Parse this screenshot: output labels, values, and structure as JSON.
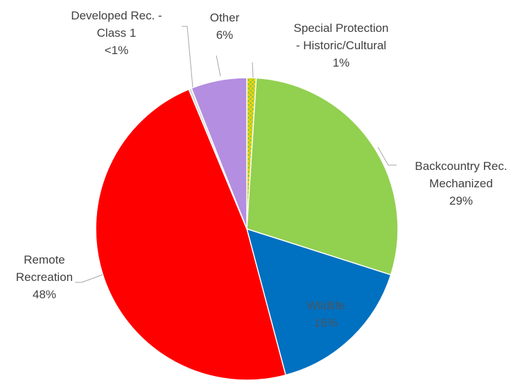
{
  "chart_data": {
    "type": "pie",
    "title": "",
    "start_angle_deg": 0,
    "direction": "clockwise",
    "slices": [
      {
        "label_lines": [
          "Special Protection",
          "- Historic/Cultural"
        ],
        "value_text": "1%",
        "value": 1,
        "color": "#9acc3a",
        "pattern": "checker-yellow-green"
      },
      {
        "label_lines": [
          "Backcountry Rec.",
          "Mechanized"
        ],
        "value_text": "29%",
        "value": 29,
        "color": "#92d050"
      },
      {
        "label_lines": [
          "Wildlife"
        ],
        "value_text": "16%",
        "value": 16,
        "color": "#0070c0"
      },
      {
        "label_lines": [
          "Remote",
          "Recreation"
        ],
        "value_text": "48%",
        "value": 48,
        "color": "#ff0000"
      },
      {
        "label_lines": [
          "Developed Rec. -",
          "Class 1"
        ],
        "value_text": "<1%",
        "value": 0.3,
        "color": "#d9d9d9"
      },
      {
        "label_lines": [
          "Other"
        ],
        "value_text": "6%",
        "value": 6,
        "color": "#b48ee0"
      }
    ]
  }
}
